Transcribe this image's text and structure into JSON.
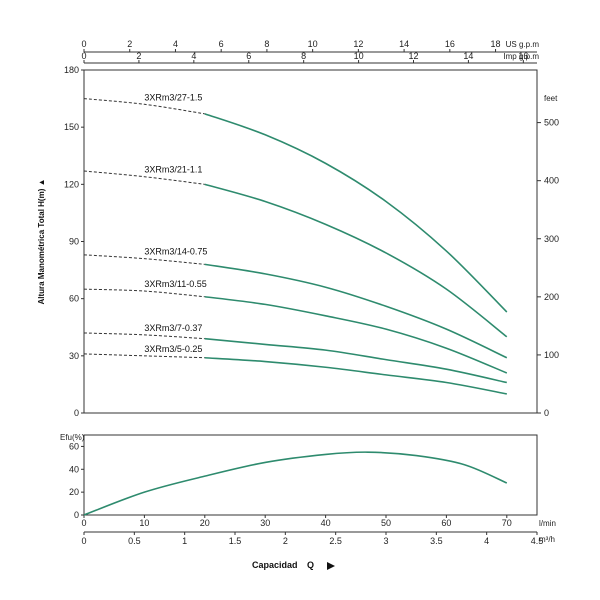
{
  "chart_data": [
    {
      "type": "line",
      "ylabel": "Altura Manométrica Total H(m)",
      "ylim": [
        0,
        180
      ],
      "yticks": [
        0,
        30,
        60,
        90,
        120,
        150,
        180
      ],
      "ytick_labels": [
        "0",
        "30",
        "60",
        "90",
        "120",
        "150",
        "180"
      ],
      "xlim": [
        0,
        75
      ],
      "right_axis": {
        "unit": "feet",
        "ticks": [
          0,
          100,
          200,
          300,
          400,
          500
        ]
      },
      "top_axis_1": {
        "unit": "US g.p.m",
        "ticks": [
          0,
          2,
          4,
          6,
          8,
          10,
          12,
          14,
          16,
          18
        ]
      },
      "top_axis_2": {
        "unit": "Imp g.p.m",
        "ticks": [
          0,
          2,
          4,
          6,
          8,
          10,
          12,
          14,
          16
        ]
      },
      "series": [
        {
          "name": "3XRm3/27-1.5",
          "x": [
            0,
            10,
            20,
            30,
            40,
            50,
            60,
            70
          ],
          "y": [
            165,
            162,
            157,
            146,
            131,
            111,
            85,
            53
          ]
        },
        {
          "name": "3XRm3/21-1.1",
          "x": [
            0,
            10,
            20,
            30,
            40,
            50,
            60,
            70
          ],
          "y": [
            127,
            124,
            120,
            111,
            99,
            84,
            65,
            40
          ]
        },
        {
          "name": "3XRm3/14-0.75",
          "x": [
            0,
            10,
            20,
            30,
            40,
            50,
            60,
            70
          ],
          "y": [
            83,
            81,
            78,
            73,
            66,
            56,
            44,
            29
          ]
        },
        {
          "name": "3XRm3/11-0.55",
          "x": [
            0,
            10,
            20,
            30,
            40,
            50,
            60,
            70
          ],
          "y": [
            65,
            64,
            61,
            57,
            51,
            44,
            34,
            21
          ]
        },
        {
          "name": "3XRm3/7-0.37",
          "x": [
            0,
            10,
            20,
            30,
            40,
            50,
            60,
            70
          ],
          "y": [
            42,
            41,
            39,
            36,
            33,
            28,
            23,
            16
          ]
        },
        {
          "name": "3XRm3/5-0.25",
          "x": [
            0,
            10,
            20,
            30,
            40,
            50,
            60,
            70
          ],
          "y": [
            31,
            30,
            29,
            27,
            24,
            20,
            16,
            10
          ]
        }
      ]
    },
    {
      "type": "line",
      "ylabel": "Efu(%)",
      "ylim": [
        0,
        70
      ],
      "yticks": [
        0,
        20,
        40,
        60
      ],
      "xlim": [
        0,
        75
      ],
      "xticks": [
        0,
        10,
        20,
        30,
        40,
        50,
        60,
        70
      ],
      "xunit": "l/min",
      "second_x_axis": {
        "unit": "m³/h",
        "ticks": [
          "0",
          "0.5",
          "1",
          "1.5",
          "2",
          "2.5",
          "3",
          "3.5",
          "4",
          "4.5"
        ]
      },
      "series": [
        {
          "x": [
            0,
            10,
            20,
            30,
            40,
            47,
            55,
            63,
            70
          ],
          "y": [
            0,
            20,
            34,
            46,
            53,
            55,
            52,
            44,
            28
          ]
        }
      ]
    }
  ],
  "xaxis_label": {
    "text": "Capacidad",
    "symbol": "Q"
  },
  "colors": {
    "curve": "#2e8b6e",
    "axis": "#333333",
    "dashed": "#333333"
  }
}
